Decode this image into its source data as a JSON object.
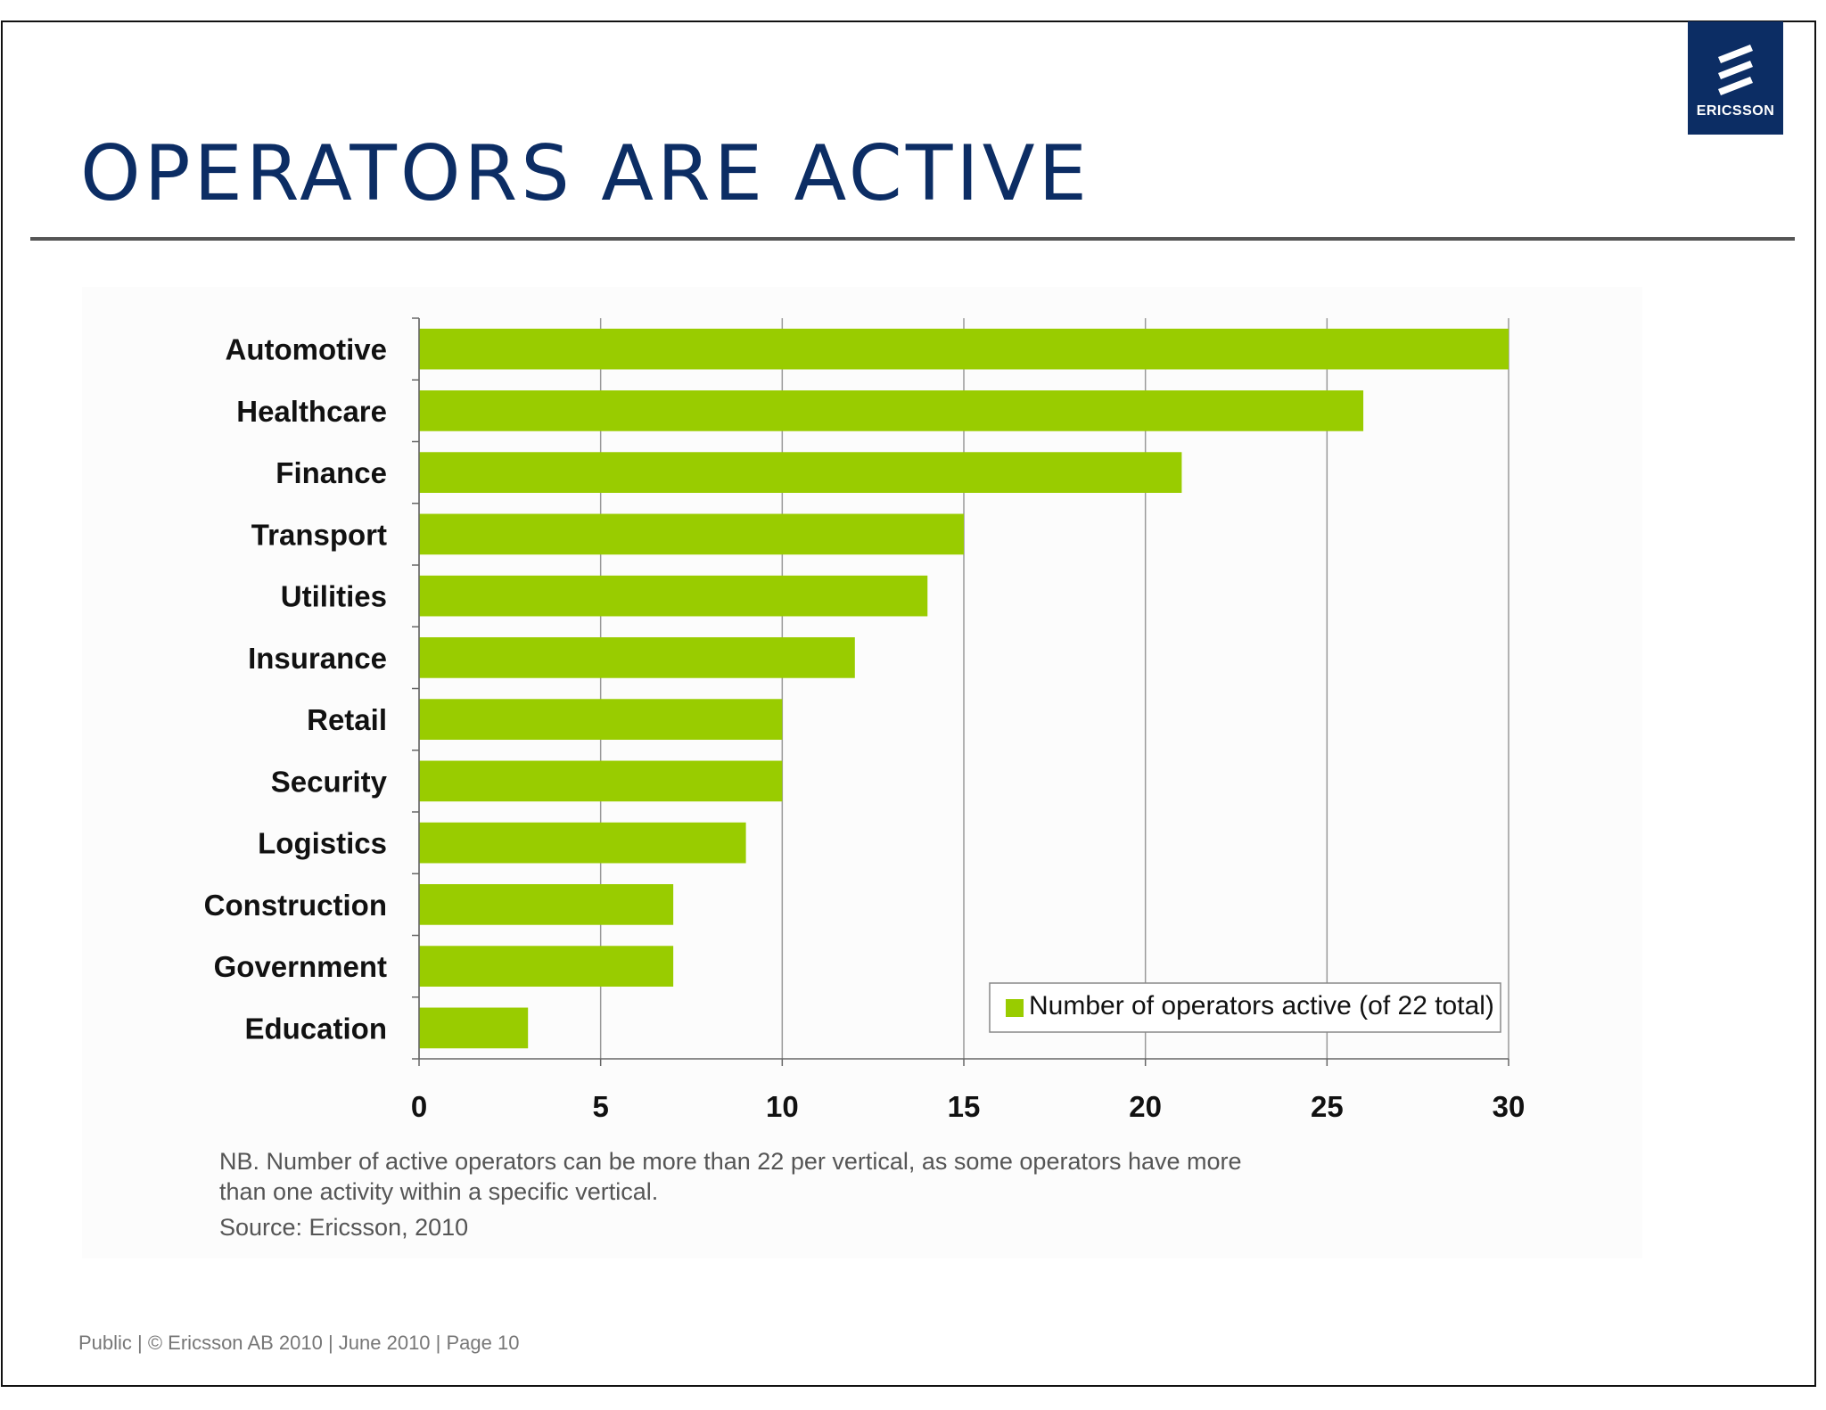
{
  "slide": {
    "title": "OPERATORS ARE ACTIVE",
    "logo_text": "ERICSSON",
    "note": "NB. Number of active operators can be more than 22 per vertical, as some operators have more than one activity within a specific vertical.",
    "source": "Source: Ericsson, 2010",
    "footer": "Public  |  © Ericsson AB 2010  |  June 2010  |  Page 10"
  },
  "colors": {
    "bar": "#99cc00",
    "title": "#0c2d64",
    "logo_bg": "#0c2d64"
  },
  "chart_data": {
    "type": "bar",
    "orientation": "horizontal",
    "categories": [
      "Automotive",
      "Healthcare",
      "Finance",
      "Transport",
      "Utilities",
      "Insurance",
      "Retail",
      "Security",
      "Logistics",
      "Construction",
      "Government",
      "Education"
    ],
    "series": [
      {
        "name": "Number of operators active (of 22 total)",
        "values": [
          30,
          26,
          21,
          15,
          14,
          12,
          10,
          10,
          9,
          7,
          7,
          3
        ]
      }
    ],
    "xlim": [
      0,
      30
    ],
    "xticks": [
      0,
      5,
      10,
      15,
      20,
      25,
      30
    ],
    "grid": "vertical",
    "legend_position": "bottom-right"
  }
}
